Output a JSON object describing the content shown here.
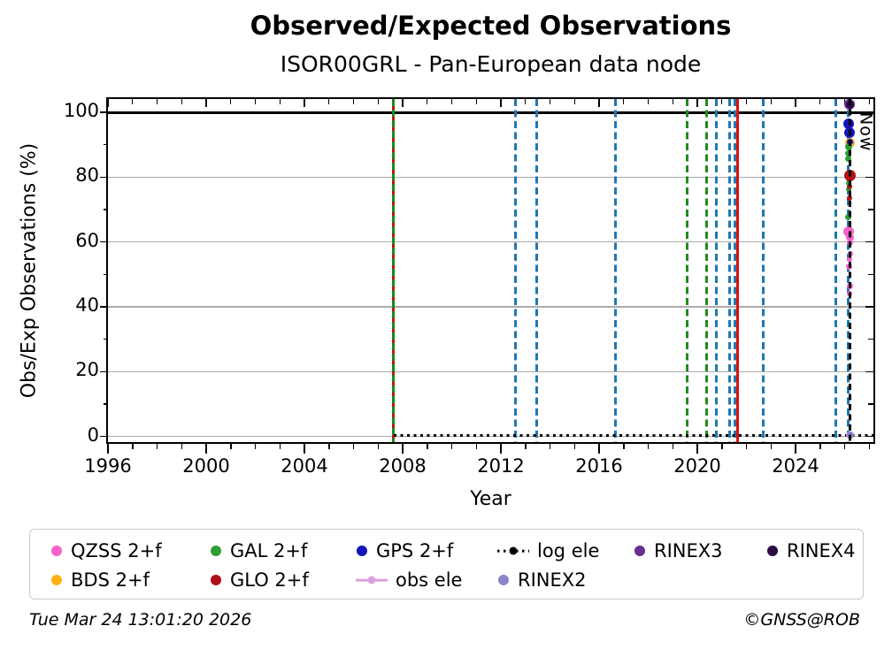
{
  "title": "Observed/Expected Observations",
  "subtitle": "ISOR00GRL - Pan-European data node",
  "footer": {
    "timestamp": "Tue Mar 24 13:01:20 2026",
    "copyright": "©GNSS@ROB"
  },
  "chart_data": {
    "type": "scatter",
    "title": "Observed/Expected Observations",
    "subtitle": "ISOR00GRL - Pan-European data node",
    "xlabel": "Year",
    "ylabel": "Obs/Exp Observations (%)",
    "xlim": [
      1996,
      2027.17
    ],
    "ylim": [
      -1.75,
      104.1
    ],
    "xticks": [
      1996,
      2000,
      2004,
      2008,
      2012,
      2016,
      2020,
      2024
    ],
    "xminor_step": 1,
    "yticks": [
      0,
      20,
      40,
      60,
      80,
      100
    ],
    "yminor_step": 10,
    "grid": "horizontal-only",
    "hline": {
      "y": 100,
      "color": "#000000"
    },
    "dotted_baseline": {
      "y": 0.4,
      "x_start": 2007.63,
      "x_end": 2027.17,
      "color": "#000000",
      "style": "dotted",
      "label": "log ele"
    },
    "now_marker": {
      "x": 2026.21,
      "label": "Now",
      "color": "#000000",
      "style": "dashed"
    },
    "vlines": [
      {
        "x": 2007.63,
        "color": "#188a18",
        "style": "dashed",
        "overlay_color": "#cc1111"
      },
      {
        "x": 2012.61,
        "color": "#1f77b4",
        "style": "dashed"
      },
      {
        "x": 2013.47,
        "color": "#1f77b4",
        "style": "dashed"
      },
      {
        "x": 2016.65,
        "color": "#1f77b4",
        "style": "dashed"
      },
      {
        "x": 2019.58,
        "color": "#1e8c1e",
        "style": "dashed"
      },
      {
        "x": 2020.39,
        "color": "#1e8c1e",
        "style": "dashed"
      },
      {
        "x": 2020.76,
        "color": "#1f77b4",
        "style": "dashed"
      },
      {
        "x": 2021.32,
        "color": "#1f77b4",
        "style": "dashed"
      },
      {
        "x": 2021.54,
        "color": "#1f77b4",
        "style": "dashed"
      },
      {
        "x": 2021.65,
        "color": "#dd1111",
        "style": "solid"
      },
      {
        "x": 2022.67,
        "color": "#1f77b4",
        "style": "dashed"
      },
      {
        "x": 2025.65,
        "color": "#1f77b4",
        "style": "dashed"
      },
      {
        "x": 2026.14,
        "color": "#1f77b4",
        "style": "dashed"
      }
    ],
    "series": [
      {
        "name": "QZSS 2+f",
        "color": "#f861c9",
        "points": [
          [
            2026.17,
            63.2,
            12
          ],
          [
            2026.21,
            61.5,
            9
          ],
          [
            2026.2,
            59.8,
            7
          ],
          [
            2026.25,
            56.4,
            6
          ],
          [
            2026.21,
            54.6,
            6
          ],
          [
            2026.19,
            52.3,
            7
          ],
          [
            2026.2,
            46.4,
            7
          ],
          [
            2026.19,
            44.2,
            6
          ]
        ]
      },
      {
        "name": "BDS 2+f",
        "color": "#ffb316",
        "points": [
          [
            2026.21,
            90.6,
            11
          ]
        ]
      },
      {
        "name": "GAL 2+f",
        "color": "#2e9e35",
        "points": [
          [
            2026.15,
            89.4,
            8
          ],
          [
            2026.16,
            87.4,
            7
          ],
          [
            2026.15,
            85.7,
            7
          ],
          [
            2026.15,
            78.2,
            6
          ],
          [
            2026.17,
            76.3,
            6
          ],
          [
            2026.15,
            67.8,
            7
          ]
        ]
      },
      {
        "name": "GLO 2+f",
        "color": "#b11117",
        "points": [
          [
            2026.2,
            80.6,
            13
          ],
          [
            2026.2,
            77.2,
            6
          ],
          [
            2026.18,
            73.5,
            6
          ]
        ]
      },
      {
        "name": "GPS 2+f",
        "color": "#1414bd",
        "points": [
          [
            2026.17,
            96.4,
            12
          ],
          [
            2026.19,
            93.7,
            12
          ],
          [
            2026.22,
            90.8,
            7
          ]
        ]
      },
      {
        "name": "obs ele",
        "color": "#dda0dd",
        "points": [
          [
            2026.18,
            0.5,
            8
          ]
        ]
      },
      {
        "name": "RINEX2",
        "color": "#8a85cc",
        "points": [
          [
            2026.23,
            0.4,
            8
          ]
        ]
      },
      {
        "name": "RINEX3",
        "color": "#6b2d90",
        "points": [
          [
            2026.18,
            102.4,
            12
          ]
        ]
      },
      {
        "name": "RINEX4",
        "color": "#2e0a45",
        "points": [
          [
            2026.23,
            102.2,
            9
          ]
        ]
      }
    ],
    "legend": {
      "position": "below",
      "columns": [
        [
          {
            "label": "QZSS 2+f",
            "color": "#f861c9",
            "marker": "dot"
          },
          {
            "label": "BDS 2+f",
            "color": "#ffb316",
            "marker": "dot"
          }
        ],
        [
          {
            "label": "GAL 2+f",
            "color": "#2e9e35",
            "marker": "dot"
          },
          {
            "label": "GLO 2+f",
            "color": "#b11117",
            "marker": "dot"
          }
        ],
        [
          {
            "label": "GPS 2+f",
            "color": "#1414bd",
            "marker": "dot"
          },
          {
            "label": "obs ele",
            "color": "#dda0dd",
            "marker": "line-dot"
          }
        ],
        [
          {
            "label": "log ele",
            "color": "#000000",
            "marker": "dotted-line"
          },
          {
            "label": "RINEX2",
            "color": "#8a85cc",
            "marker": "dot"
          }
        ],
        [
          {
            "label": "RINEX3",
            "color": "#6b2d90",
            "marker": "dot"
          }
        ],
        [
          {
            "label": "RINEX4",
            "color": "#2e0a45",
            "marker": "dot"
          }
        ]
      ]
    }
  }
}
